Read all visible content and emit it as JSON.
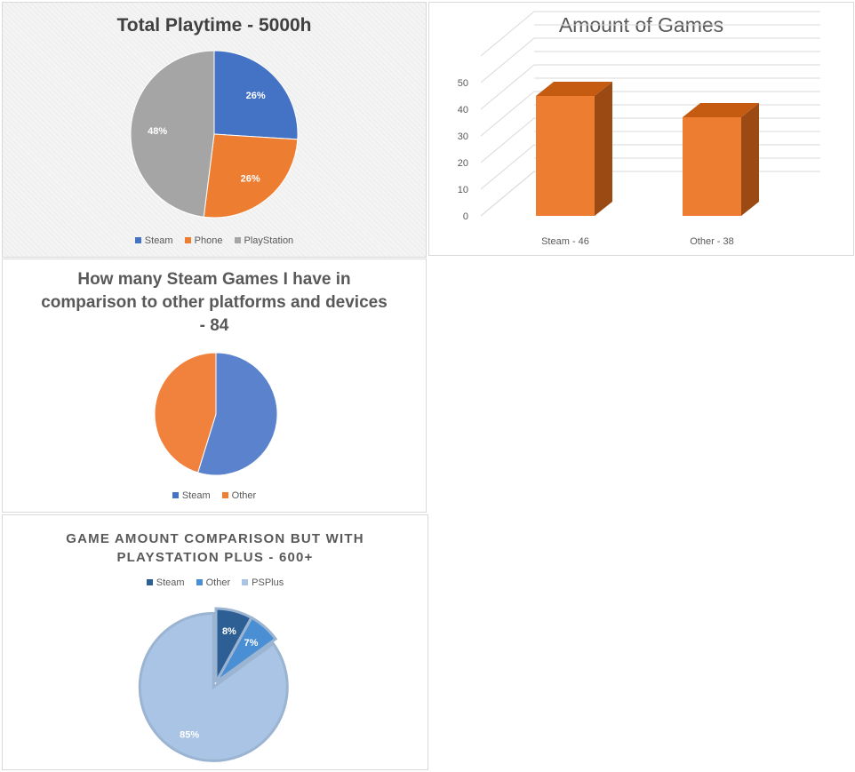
{
  "colors": {
    "steam_blue": "#4472c4",
    "orange": "#ed7d31",
    "gray": "#a5a5a5",
    "bar_front": "#ed7d31",
    "bar_top": "#c55a11",
    "bar_side": "#9c4a14",
    "dark_blue": "#2e5f94",
    "mid_blue": "#4a8fd4",
    "light_blue": "#a9c4e4"
  },
  "chart_data": [
    {
      "type": "pie",
      "title": "Total Playtime - 5000h",
      "categories": [
        "Steam",
        "Phone",
        "PlayStation"
      ],
      "values": [
        26,
        26,
        48
      ],
      "labels": [
        "26%",
        "26%",
        "48%"
      ],
      "legend": "bottom"
    },
    {
      "type": "bar",
      "title": "Amount of Games",
      "categories": [
        "Steam - 46",
        "Other - 38"
      ],
      "values": [
        46,
        38
      ],
      "yticks": [
        "0",
        "10",
        "20",
        "30",
        "40",
        "50"
      ],
      "ylim": [
        0,
        60
      ],
      "grid": true,
      "style": "3d"
    },
    {
      "type": "pie",
      "title": "How many Steam Games I have in comparison to other platforms and devices - 84",
      "categories": [
        "Steam",
        "Other"
      ],
      "values": [
        46,
        38
      ],
      "legend": "bottom"
    },
    {
      "type": "pie",
      "title": "GAME AMOUNT COMPARISON BUT WITH PLAYSTATION PLUS - 600+",
      "categories": [
        "Steam",
        "Other",
        "PSPlus"
      ],
      "values": [
        8,
        7,
        85
      ],
      "labels": [
        "8%",
        "7%",
        "85%"
      ],
      "legend": "top",
      "exploded": "PSPlus"
    }
  ]
}
